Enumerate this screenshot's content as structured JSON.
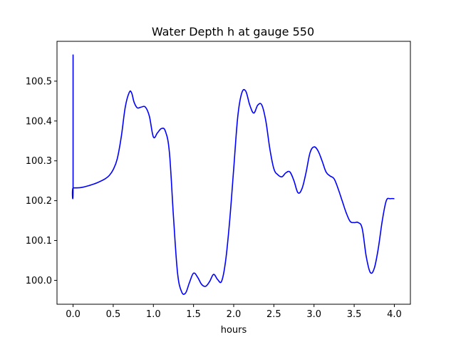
{
  "chart_data": {
    "type": "line",
    "title": "Water Depth h at gauge 550",
    "xlabel": "hours",
    "ylabel": "",
    "xlim": [
      -0.2,
      4.2
    ],
    "ylim": [
      99.94,
      100.6
    ],
    "grid": false,
    "xticks": [
      0.0,
      0.5,
      1.0,
      1.5,
      2.0,
      2.5,
      3.0,
      3.5,
      4.0
    ],
    "xtick_labels": [
      "0.0",
      "0.5",
      "1.0",
      "1.5",
      "2.0",
      "2.5",
      "3.0",
      "3.5",
      "4.0"
    ],
    "yticks": [
      100.0,
      100.1,
      100.2,
      100.3,
      100.4,
      100.5
    ],
    "ytick_labels": [
      "100.0",
      "100.1",
      "100.2",
      "100.3",
      "100.4",
      "100.5"
    ],
    "series": [
      {
        "color": "#0000ff",
        "x": [
          0.0,
          0.0,
          0.0,
          0.1,
          0.2,
          0.3,
          0.4,
          0.45,
          0.5,
          0.55,
          0.6,
          0.65,
          0.7,
          0.73,
          0.76,
          0.8,
          0.85,
          0.9,
          0.95,
          1.0,
          1.05,
          1.1,
          1.15,
          1.2,
          1.25,
          1.3,
          1.35,
          1.4,
          1.45,
          1.5,
          1.55,
          1.6,
          1.65,
          1.7,
          1.75,
          1.8,
          1.85,
          1.9,
          1.95,
          2.0,
          2.05,
          2.1,
          2.15,
          2.2,
          2.25,
          2.3,
          2.35,
          2.4,
          2.45,
          2.5,
          2.55,
          2.6,
          2.65,
          2.7,
          2.75,
          2.8,
          2.85,
          2.9,
          2.95,
          3.0,
          3.05,
          3.1,
          3.15,
          3.2,
          3.25,
          3.3,
          3.35,
          3.4,
          3.45,
          3.5,
          3.55,
          3.6,
          3.65,
          3.7,
          3.75,
          3.8,
          3.85,
          3.9,
          3.95,
          4.0
        ],
        "y": [
          100.567,
          100.232,
          100.232,
          100.233,
          100.238,
          100.245,
          100.255,
          100.263,
          100.278,
          100.305,
          100.36,
          100.435,
          100.472,
          100.47,
          100.447,
          100.433,
          100.435,
          100.435,
          100.412,
          100.36,
          100.37,
          100.381,
          100.374,
          100.32,
          100.16,
          100.02,
          99.972,
          99.968,
          99.995,
          100.018,
          100.008,
          99.99,
          99.985,
          99.997,
          100.015,
          100.002,
          99.998,
          100.05,
          100.15,
          100.28,
          100.41,
          100.47,
          100.475,
          100.44,
          100.42,
          100.44,
          100.44,
          100.4,
          100.33,
          100.28,
          100.265,
          100.26,
          100.27,
          100.272,
          100.25,
          100.22,
          100.23,
          100.27,
          100.32,
          100.335,
          100.325,
          100.3,
          100.272,
          100.262,
          100.255,
          100.23,
          100.2,
          100.17,
          100.148,
          100.145,
          100.145,
          100.13,
          100.06,
          100.02,
          100.03,
          100.08,
          100.15,
          100.2,
          100.205,
          100.205
        ]
      }
    ]
  }
}
